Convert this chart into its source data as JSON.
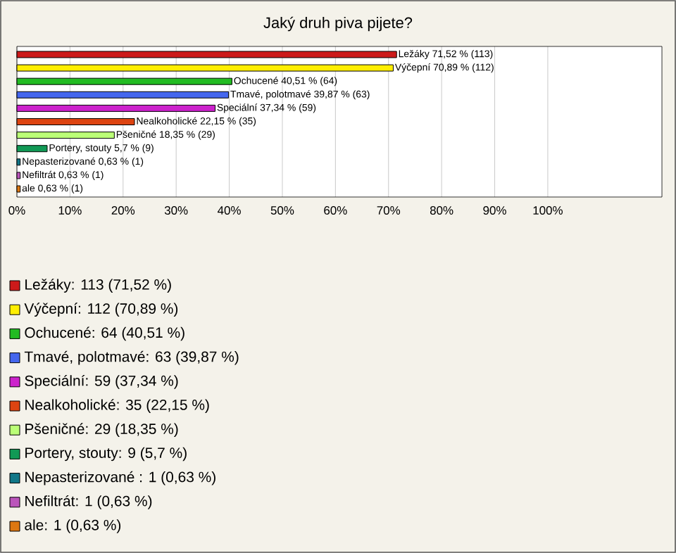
{
  "chart_data": {
    "type": "bar",
    "orientation": "horizontal",
    "title": "Jaký druh piva pijete?",
    "categories": [
      null,
      null,
      null,
      null,
      null,
      null,
      null,
      null,
      null,
      null,
      null
    ],
    "values": [
      71.52,
      70.89,
      40.51,
      39.87,
      37.34,
      22.15,
      18.35,
      5.7,
      0.63,
      0.63,
      0.63
    ],
    "value_labels": [
      "Ležáky 71,52 % (113)",
      "Výčepní 70,89 % (112)",
      "Ochucené 40,51 % (64)",
      "Tmavé, polotmavé 39,87 % (63)",
      "Speciální 37,34 % (59)",
      "Nealkoholické 22,15 % (35)",
      "Pšeničné 18,35 % (29)",
      "Portery, stouty 5,7 % (9)",
      "Nepasterizované  0,63 % (1)",
      "Nefiltrát 0,63 % (1)",
      "ale 0,63 % (1)"
    ],
    "colors": [
      "#cc1a1a",
      "#ffee00",
      "#22bb22",
      "#4466ee",
      "#cc22cc",
      "#dd4411",
      "#bbff77",
      "#119955",
      "#117788",
      "#bb55bb",
      "#dd7711"
    ],
    "xlim": [
      0,
      121.5
    ],
    "xticks": [
      {
        "value": 0,
        "label": "0%"
      },
      {
        "value": 10,
        "label": "10%"
      },
      {
        "value": 20,
        "label": "20%"
      },
      {
        "value": 30,
        "label": "30%"
      },
      {
        "value": 40,
        "label": "40%"
      },
      {
        "value": 50,
        "label": "50%"
      },
      {
        "value": 60,
        "label": "60%"
      },
      {
        "value": 70,
        "label": "70%"
      },
      {
        "value": 80,
        "label": "80%"
      },
      {
        "value": 90,
        "label": "90%"
      },
      {
        "value": 100,
        "label": "100%"
      }
    ],
    "grid": "x",
    "annotations": [
      "Ležáky: 113 (71,52 %)",
      "Výčepní: 112 (70,89 %)",
      "Ochucené: 64 (40,51 %)",
      "Tmavé, polotmavé: 63 (39,87 %)",
      "Speciální: 59 (37,34 %)",
      "Nealkoholické: 35 (22,15 %)",
      "Pšeničné: 29 (18,35 %)",
      "Portery, stouty: 9 (5,7 %)",
      "Nepasterizované : 1 (0,63 %)",
      "Nefiltrát: 1 (0,63 %)",
      "ale: 1 (0,63 %)"
    ]
  }
}
